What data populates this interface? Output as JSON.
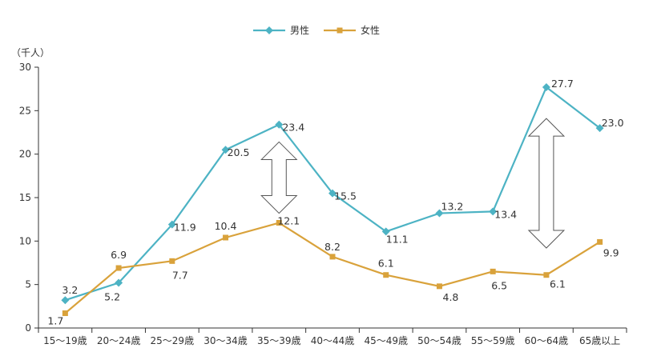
{
  "colors": {
    "male": "#4db3c4",
    "female": "#d9a23b",
    "axis": "#333333",
    "arrow_fill": "#ffffff",
    "arrow_stroke": "#555555"
  },
  "chart_data": {
    "type": "line",
    "unit_label": "（千人）",
    "categories": [
      "15〜19歳",
      "20〜24歳",
      "25〜29歳",
      "30〜34歳",
      "35〜39歳",
      "40〜44歳",
      "45〜49歳",
      "50〜54歳",
      "55〜59歳",
      "60〜64歳",
      "65歳以上"
    ],
    "y_ticks": [
      "0",
      "5",
      "10",
      "15",
      "20",
      "25",
      "30"
    ],
    "ylim": [
      0,
      30
    ],
    "legend_position": "top-center",
    "series": [
      {
        "name": "男性",
        "color": "#4db3c4",
        "marker": "diamond",
        "values": [
          3.2,
          5.2,
          11.9,
          20.5,
          23.4,
          15.5,
          11.1,
          13.2,
          13.4,
          27.7,
          23.0
        ],
        "labels": [
          "3.2",
          "5.2",
          "11.9",
          "20.5",
          "23.4",
          "15.5",
          "11.1",
          "13.2",
          "13.4",
          "27.7",
          "23.0"
        ]
      },
      {
        "name": "女性",
        "color": "#d9a23b",
        "marker": "square",
        "values": [
          1.7,
          6.9,
          7.7,
          10.4,
          12.1,
          8.2,
          6.1,
          4.8,
          6.5,
          6.1,
          9.9
        ],
        "labels": [
          "1.7",
          "6.9",
          "7.7",
          "10.4",
          "12.1",
          "8.2",
          "6.1",
          "4.8",
          "6.5",
          "6.1",
          "9.9"
        ]
      }
    ],
    "gap_arrows": [
      {
        "category_index": 4,
        "from_value": 13.2,
        "to_value": 21.4
      },
      {
        "category_index": 9,
        "from_value": 9.2,
        "to_value": 24.1
      }
    ]
  }
}
